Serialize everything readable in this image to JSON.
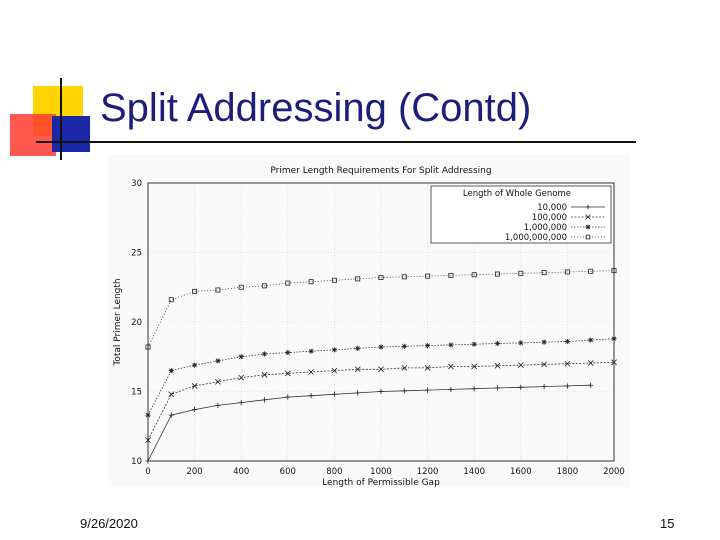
{
  "slide": {
    "title": "Split Addressing (Contd)",
    "date": "9/26/2020",
    "page_number": "15"
  },
  "chart_data": {
    "type": "line",
    "title": "Primer Length Requirements For Split Addressing",
    "xlabel": "Length of Permissible Gap",
    "ylabel": "Total Primer Length",
    "xlim": [
      0,
      2000
    ],
    "ylim": [
      10,
      30
    ],
    "xticks": [
      0,
      200,
      400,
      600,
      800,
      1000,
      1200,
      1400,
      1600,
      1800,
      2000
    ],
    "yticks": [
      10,
      15,
      20,
      25,
      30
    ],
    "grid": true,
    "legend": {
      "title": "Length of Whole Genome",
      "placement": "top-right"
    },
    "x": [
      0,
      100,
      200,
      300,
      400,
      500,
      600,
      700,
      800,
      900,
      1000,
      1100,
      1200,
      1300,
      1400,
      1500,
      1600,
      1700,
      1800,
      1900,
      2000
    ],
    "series": [
      {
        "name": "10,000",
        "marker": "plus",
        "values": [
          10.0,
          13.3,
          13.7,
          14.0,
          14.2,
          14.4,
          14.6,
          14.7,
          14.8,
          14.9,
          15.0,
          15.05,
          15.1,
          15.15,
          15.2,
          15.25,
          15.3,
          15.35,
          15.4,
          15.45,
          null
        ]
      },
      {
        "name": "100,000",
        "marker": "x",
        "values": [
          11.5,
          14.8,
          15.4,
          15.7,
          16.0,
          16.2,
          16.3,
          16.4,
          16.5,
          16.6,
          16.6,
          16.7,
          16.7,
          16.8,
          16.8,
          16.85,
          16.9,
          16.95,
          17.0,
          17.05,
          17.1
        ]
      },
      {
        "name": "1,000,000",
        "marker": "star",
        "values": [
          13.3,
          16.5,
          16.9,
          17.2,
          17.5,
          17.7,
          17.8,
          17.9,
          18.0,
          18.1,
          18.2,
          18.25,
          18.3,
          18.35,
          18.4,
          18.45,
          18.5,
          18.55,
          18.6,
          18.7,
          18.8
        ]
      },
      {
        "name": "1,000,000,000",
        "marker": "square",
        "values": [
          18.2,
          21.6,
          22.2,
          22.3,
          22.5,
          22.6,
          22.8,
          22.9,
          23.0,
          23.1,
          23.2,
          23.25,
          23.3,
          23.35,
          23.4,
          23.45,
          23.5,
          23.55,
          23.6,
          23.65,
          23.7
        ]
      }
    ]
  }
}
